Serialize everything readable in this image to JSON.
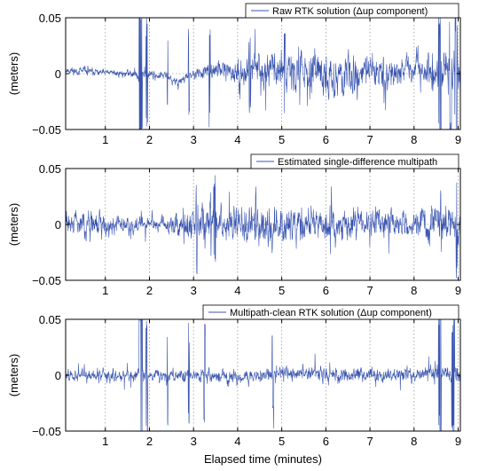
{
  "xlabel": "Elapsed time (minutes)",
  "colors": {
    "series": "#3a55b0",
    "grid": "#9a9a9a",
    "axis": "#000000"
  },
  "chart_data": [
    {
      "type": "line",
      "legend": "Raw RTK solution (Δup component)",
      "ylabel": "(meters)",
      "xlim": [
        0.1,
        9.05
      ],
      "ylim": [
        -0.05,
        0.05
      ],
      "xticks": [
        1,
        2,
        3,
        4,
        5,
        6,
        7,
        8,
        9
      ],
      "yticks": [
        {
          "value": 0.05,
          "label": "0.05"
        },
        {
          "value": 0,
          "label": "0"
        },
        {
          "value": -0.05,
          "label": "−0.05"
        }
      ],
      "grid": true,
      "legend_position": "top-right",
      "profile": [
        [
          0.1,
          0.003,
          0.0035
        ],
        [
          0.9,
          0.001,
          0.003
        ],
        [
          1.45,
          0.0,
          0.003
        ],
        [
          1.8,
          0.0,
          0.0045
        ],
        [
          2.4,
          -0.002,
          0.003
        ],
        [
          2.55,
          -0.008,
          0.0045
        ],
        [
          2.85,
          -0.003,
          0.004
        ],
        [
          3.3,
          0.002,
          0.005
        ],
        [
          3.7,
          0.004,
          0.009
        ],
        [
          4.0,
          0.0,
          0.012
        ],
        [
          4.4,
          0.005,
          0.015
        ],
        [
          5.0,
          0.005,
          0.017
        ],
        [
          6.0,
          -0.002,
          0.017
        ],
        [
          7.0,
          0.002,
          0.016
        ],
        [
          7.7,
          0.002,
          0.011
        ],
        [
          8.3,
          0.003,
          0.015
        ],
        [
          9.05,
          0.0,
          0.018
        ]
      ],
      "bursts": [
        [
          1.76,
          1.84,
          0.085
        ],
        [
          1.92,
          1.96,
          0.055
        ],
        [
          2.4,
          2.42,
          0.045
        ],
        [
          2.88,
          2.91,
          0.048
        ],
        [
          3.35,
          3.38,
          0.05
        ],
        [
          4.25,
          4.3,
          0.04
        ],
        [
          5.05,
          5.08,
          0.045
        ],
        [
          8.55,
          8.62,
          0.06
        ],
        [
          8.8,
          8.85,
          0.07
        ],
        [
          8.92,
          8.98,
          0.065
        ]
      ],
      "seed": 11
    },
    {
      "type": "line",
      "legend": "Estimated single-difference multipath",
      "ylabel": "(meters)",
      "xlim": [
        0.1,
        9.05
      ],
      "ylim": [
        -0.05,
        0.05
      ],
      "xticks": [
        1,
        2,
        3,
        4,
        5,
        6,
        7,
        8,
        9
      ],
      "yticks": [
        {
          "value": 0.05,
          "label": "0.05"
        },
        {
          "value": 0,
          "label": "0"
        },
        {
          "value": -0.05,
          "label": "−0.05"
        }
      ],
      "grid": true,
      "legend_position": "top-right",
      "profile": [
        [
          0.1,
          0.001,
          0.008
        ],
        [
          0.6,
          0.0,
          0.011
        ],
        [
          1.2,
          0.0,
          0.009
        ],
        [
          1.8,
          0.0,
          0.006
        ],
        [
          2.4,
          0.0,
          0.007
        ],
        [
          2.9,
          0.0,
          0.015
        ],
        [
          3.3,
          0.0,
          0.02
        ],
        [
          3.7,
          0.0,
          0.014
        ],
        [
          4.4,
          0.0,
          0.016
        ],
        [
          5.2,
          0.0,
          0.016
        ],
        [
          6.2,
          0.0,
          0.015
        ],
        [
          7.0,
          0.0,
          0.013
        ],
        [
          7.8,
          0.0,
          0.01
        ],
        [
          8.4,
          0.0,
          0.015
        ],
        [
          9.05,
          0.0,
          0.017
        ]
      ],
      "bursts": [
        [
          3.05,
          3.08,
          0.045
        ],
        [
          3.45,
          3.5,
          0.045
        ],
        [
          4.4,
          4.42,
          0.035
        ],
        [
          8.6,
          8.62,
          0.04
        ],
        [
          8.95,
          8.98,
          0.05
        ]
      ],
      "seed": 29
    },
    {
      "type": "line",
      "legend": "Multipath-clean RTK solution (Δup component)",
      "ylabel": "(meters)",
      "xlim": [
        0.1,
        9.05
      ],
      "ylim": [
        -0.05,
        0.05
      ],
      "xticks": [
        1,
        2,
        3,
        4,
        5,
        6,
        7,
        8,
        9
      ],
      "yticks": [
        {
          "value": 0.05,
          "label": "0.05"
        },
        {
          "value": 0,
          "label": "0"
        },
        {
          "value": -0.05,
          "label": "−0.05"
        }
      ],
      "grid": true,
      "legend_position": "top-right",
      "profile": [
        [
          0.1,
          0.0,
          0.005
        ],
        [
          1.0,
          0.0,
          0.006
        ],
        [
          1.7,
          0.0,
          0.005
        ],
        [
          2.5,
          0.0,
          0.005
        ],
        [
          3.2,
          0.0,
          0.005
        ],
        [
          3.7,
          -0.002,
          0.006
        ],
        [
          4.5,
          0.0,
          0.006
        ],
        [
          5.2,
          0.003,
          0.006
        ],
        [
          6.0,
          0.0,
          0.006
        ],
        [
          7.0,
          0.0,
          0.007
        ],
        [
          7.8,
          0.0,
          0.006
        ],
        [
          8.5,
          0.001,
          0.007
        ],
        [
          9.05,
          0.0,
          0.008
        ]
      ],
      "bursts": [
        [
          1.76,
          1.84,
          0.085
        ],
        [
          1.92,
          1.96,
          0.055
        ],
        [
          2.4,
          2.42,
          0.045
        ],
        [
          2.88,
          2.91,
          0.048
        ],
        [
          3.23,
          3.27,
          0.05
        ],
        [
          4.78,
          4.82,
          0.05
        ],
        [
          8.55,
          8.62,
          0.06
        ],
        [
          8.85,
          8.92,
          0.06
        ]
      ],
      "seed": 47
    }
  ]
}
